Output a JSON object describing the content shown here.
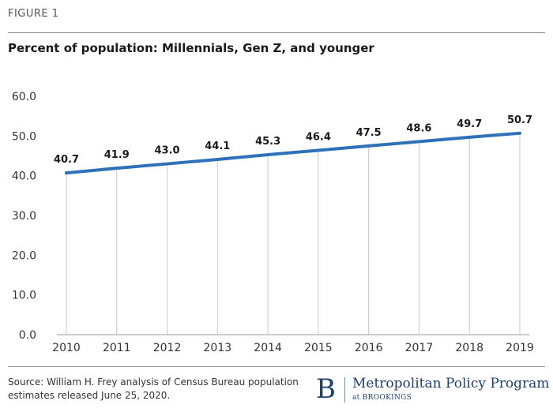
{
  "figure_label": "FIGURE 1",
  "source": "Source: William H. Frey analysis of Census Bureau population estimates released June 25, 2020.",
  "logo": {
    "letter": "B",
    "name": "Metropolitan Policy Program",
    "sub": "at BROOKINGS",
    "color": "#1d3f73"
  },
  "chart_data": {
    "type": "line",
    "title": "Percent of population: Millennials, Gen Z, and younger",
    "x": [
      "2010",
      "2011",
      "2012",
      "2013",
      "2014",
      "2015",
      "2016",
      "2017",
      "2018",
      "2019"
    ],
    "series": [
      {
        "values": [
          40.7,
          41.9,
          43.0,
          44.1,
          45.3,
          46.4,
          47.5,
          48.6,
          49.7,
          50.7
        ],
        "color": "#2f71b8"
      }
    ],
    "data_labels": [
      "40.7",
      "41.9",
      "43.0",
      "44.1",
      "45.3",
      "46.4",
      "47.5",
      "48.6",
      "49.7",
      "50.7"
    ],
    "y_ticks": [
      "0.0",
      "10.0",
      "20.0",
      "30.0",
      "40.0",
      "50.0",
      "60.0"
    ],
    "ylim": [
      0,
      60
    ],
    "grid": "vertical",
    "legend": "none"
  }
}
